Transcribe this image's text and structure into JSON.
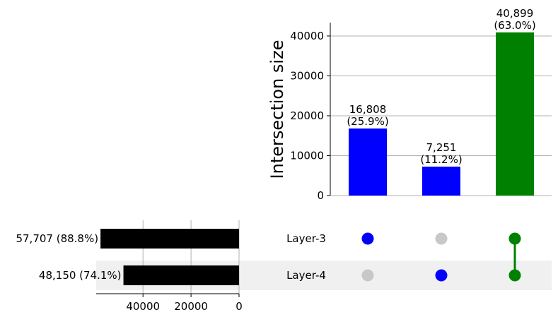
{
  "chart_data": {
    "type": "upset",
    "intersection_chart": {
      "type": "bar",
      "ylabel": "Intersection size",
      "ylim": [
        0,
        43000
      ],
      "yticks": [
        0,
        10000,
        20000,
        30000,
        40000
      ],
      "grid": true,
      "bars": [
        {
          "value": 16808,
          "count_label": "16,808",
          "pct_label": "(25.9%)",
          "color": "#0000ff",
          "members": [
            "Layer-3"
          ]
        },
        {
          "value": 7251,
          "count_label": "7,251",
          "pct_label": "(11.2%)",
          "color": "#0000ff",
          "members": [
            "Layer-4"
          ]
        },
        {
          "value": 40899,
          "count_label": "40,899",
          "pct_label": "(63.0%)",
          "color": "#008000",
          "members": [
            "Layer-3",
            "Layer-4"
          ]
        }
      ]
    },
    "set_size_chart": {
      "type": "bar",
      "orientation": "horizontal-reversed",
      "xlim": [
        0,
        59500
      ],
      "xticks": [
        40000,
        20000,
        0
      ],
      "grid": true,
      "sets": [
        {
          "name": "Layer-3",
          "value": 57707,
          "label": "57,707 (88.8%)",
          "color": "#000000"
        },
        {
          "name": "Layer-4",
          "value": 48150,
          "label": "48,150 (74.1%)",
          "color": "#000000"
        }
      ]
    },
    "matrix": {
      "rows": [
        "Layer-3",
        "Layer-4"
      ],
      "inactive_color": "#c8c8c8",
      "row_shade_color": "#f0f0f0"
    }
  }
}
